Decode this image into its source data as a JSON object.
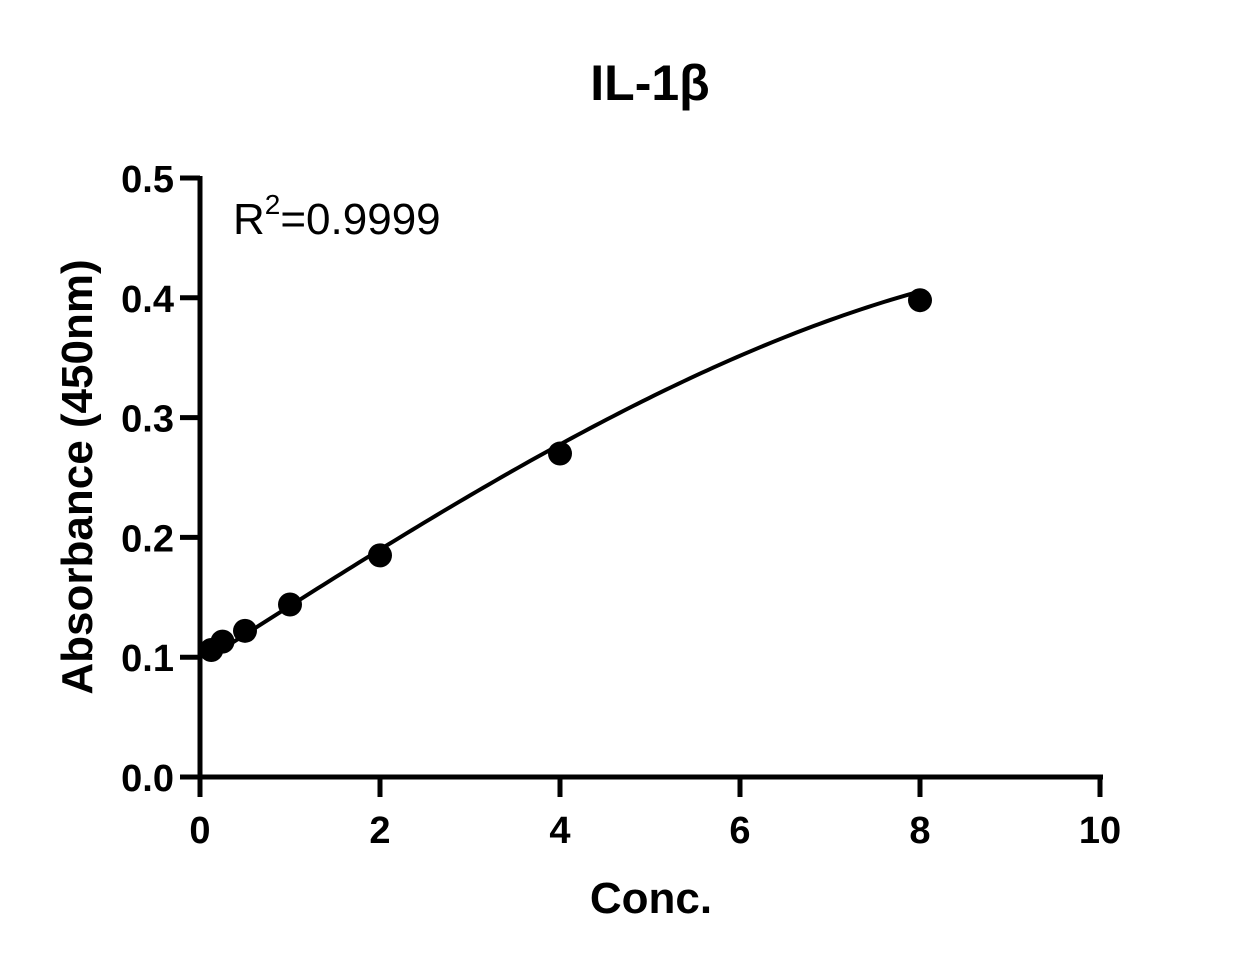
{
  "chart_data": {
    "type": "scatter",
    "title": "IL-1β",
    "xlabel": "Conc.",
    "ylabel": "Absorbance (450nm)",
    "xlim": [
      0,
      10
    ],
    "ylim": [
      0.0,
      0.5
    ],
    "xticks": [
      0,
      2,
      4,
      6,
      8,
      10
    ],
    "xtick_labels": [
      "0",
      "2",
      "4",
      "6",
      "8",
      "10"
    ],
    "yticks": [
      0.0,
      0.1,
      0.2,
      0.3,
      0.4,
      0.5
    ],
    "ytick_labels": [
      "0.0",
      "0.1",
      "0.2",
      "0.3",
      "0.4",
      "0.5"
    ],
    "grid": false,
    "legend": false,
    "annotation": {
      "base": "R",
      "superscript": "2",
      "value_text": "=0.9999"
    },
    "series": [
      {
        "x": [
          0.125,
          0.25,
          0.5,
          1,
          2,
          4,
          8
        ],
        "y": [
          0.106,
          0.113,
          0.122,
          0.144,
          0.185,
          0.27,
          0.398
        ]
      }
    ],
    "fit_curve": {
      "type": "polynomial",
      "x_range": [
        0.0,
        8.0
      ],
      "coefficients": [
        0.0948,
        0.04826,
        -0.0001,
        -0.000135
      ]
    },
    "colors": {
      "marker": "#000000",
      "line": "#000000",
      "axis": "#000000"
    }
  }
}
